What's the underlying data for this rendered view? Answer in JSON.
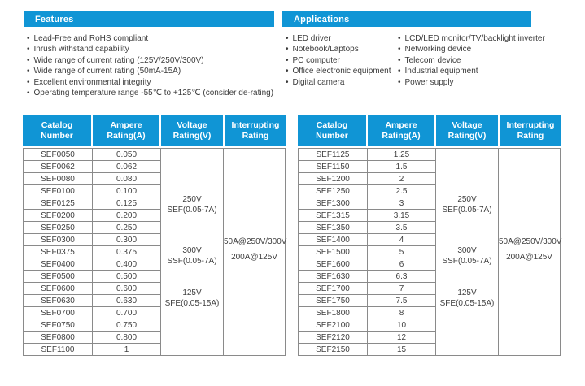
{
  "colors": {
    "accent": "#1095d5",
    "table_border": "#8a8a8a",
    "body_text": "#3c3c3c",
    "header_text": "#ffffff"
  },
  "features": {
    "title": "Features",
    "items": [
      "Lead-Free and RoHS compliant",
      "Inrush withstand capability",
      "Wide range of current rating (125V/250V/300V)",
      "Wide range of current rating (50mA-15A)",
      "Excellent environmental integrity",
      "Operating temperature range -55℃ to +125℃ (consider de-rating)"
    ]
  },
  "applications": {
    "title": "Applications",
    "col1": [
      "LED driver",
      "Notebook/Laptops",
      "PC computer",
      "Office electronic equipment",
      "Digital camera"
    ],
    "col2": [
      "LCD/LED monitor/TV/backlight inverter",
      "Networking device",
      "Telecom device",
      "Industrial equipment",
      "Power supply"
    ]
  },
  "tables": [
    {
      "headers": [
        [
          "Catalog",
          "Number"
        ],
        [
          "Ampere",
          "Rating(A)"
        ],
        [
          "Voltage",
          "Rating(V)"
        ],
        [
          "Interrupting",
          "Rating"
        ]
      ],
      "rows": [
        [
          "SEF0050",
          "0.050"
        ],
        [
          "SEF0062",
          "0.062"
        ],
        [
          "SEF0080",
          "0.080"
        ],
        [
          "SEF0100",
          "0.100"
        ],
        [
          "SEF0125",
          "0.125"
        ],
        [
          "SEF0200",
          "0.200"
        ],
        [
          "SEF0250",
          "0.250"
        ],
        [
          "SEF0300",
          "0.300"
        ],
        [
          "SEF0375",
          "0.375"
        ],
        [
          "SEF0400",
          "0.400"
        ],
        [
          "SEF0500",
          "0.500"
        ],
        [
          "SEF0600",
          "0.600"
        ],
        [
          "SEF0630",
          "0.630"
        ],
        [
          "SEF0700",
          "0.700"
        ],
        [
          "SEF0750",
          "0.750"
        ],
        [
          "SEF0800",
          "0.800"
        ],
        [
          "SEF1100",
          "1"
        ]
      ],
      "voltage_groups": [
        [
          "250V",
          "SEF(0.05-7A)"
        ],
        [
          "300V",
          "SSF(0.05-7A)"
        ],
        [
          "125V",
          "SFE(0.05-15A)"
        ]
      ],
      "interrupting": [
        "50A@250V/300V",
        "200A@125V"
      ]
    },
    {
      "headers": [
        [
          "Catalog",
          "Number"
        ],
        [
          "Ampere",
          "Rating(A)"
        ],
        [
          "Voltage",
          "Rating(V)"
        ],
        [
          "Interrupting",
          "Rating"
        ]
      ],
      "rows": [
        [
          "SEF1125",
          "1.25"
        ],
        [
          "SEF1150",
          "1.5"
        ],
        [
          "SEF1200",
          "2"
        ],
        [
          "SEF1250",
          "2.5"
        ],
        [
          "SEF1300",
          "3"
        ],
        [
          "SEF1315",
          "3.15"
        ],
        [
          "SEF1350",
          "3.5"
        ],
        [
          "SEF1400",
          "4"
        ],
        [
          "SEF1500",
          "5"
        ],
        [
          "SEF1600",
          "6"
        ],
        [
          "SEF1630",
          "6.3"
        ],
        [
          "SEF1700",
          "7"
        ],
        [
          "SEF1750",
          "7.5"
        ],
        [
          "SEF1800",
          "8"
        ],
        [
          "SEF2100",
          "10"
        ],
        [
          "SEF2120",
          "12"
        ],
        [
          "SEF2150",
          "15"
        ]
      ],
      "voltage_groups": [
        [
          "250V",
          "SEF(0.05-7A)"
        ],
        [
          "300V",
          "SSF(0.05-7A)"
        ],
        [
          "125V",
          "SFE(0.05-15A)"
        ]
      ],
      "interrupting": [
        "50A@250V/300V",
        "200A@125V"
      ]
    }
  ]
}
